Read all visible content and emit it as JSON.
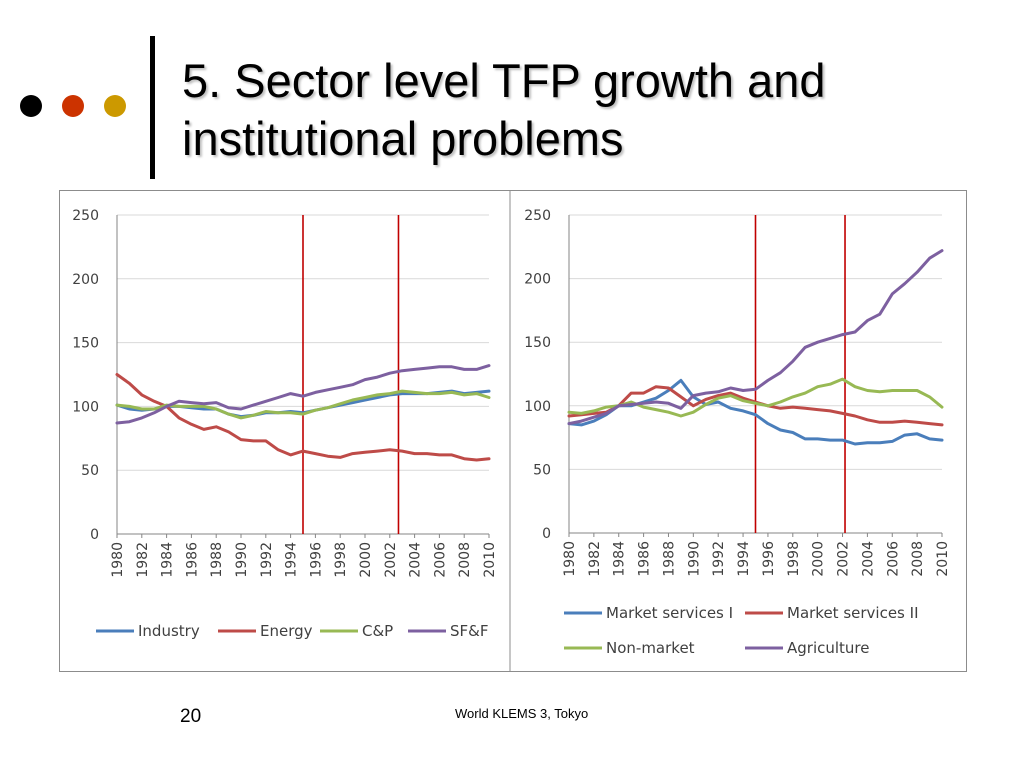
{
  "slide": {
    "title": "5. Sector level TFP growth and institutional problems",
    "page_number": "20",
    "footer": "World KLEMS 3, Tokyo",
    "bullet_colors": [
      "#000000",
      "#cc3300",
      "#cc9900"
    ]
  },
  "chart_data": [
    {
      "type": "line",
      "title": "",
      "xlabel": "",
      "ylabel": "",
      "ylim": [
        0,
        250
      ],
      "yticks": [
        0,
        50,
        100,
        150,
        200,
        250
      ],
      "xticks": [
        "1980",
        "1982",
        "1984",
        "1986",
        "1988",
        "1990",
        "1992",
        "1994",
        "1996",
        "1998",
        "2000",
        "2002",
        "2004",
        "2006",
        "2008",
        "2010"
      ],
      "x": [
        1980,
        1981,
        1982,
        1983,
        1984,
        1985,
        1986,
        1987,
        1988,
        1989,
        1990,
        1991,
        1992,
        1993,
        1994,
        1995,
        1996,
        1997,
        1998,
        1999,
        2000,
        2001,
        2002,
        2003,
        2004,
        2005,
        2006,
        2007,
        2008,
        2009,
        2010
      ],
      "vlines": [
        1995,
        2002.7
      ],
      "vline_color": "#c00000",
      "legend_position": "bottom",
      "series": [
        {
          "name": "Industry",
          "color": "#4a7ebb",
          "values": [
            101,
            98,
            97,
            98,
            100,
            100,
            99,
            98,
            98,
            94,
            92,
            93,
            95,
            95,
            96,
            95,
            97,
            99,
            101,
            103,
            105,
            107,
            109,
            110,
            110,
            110,
            111,
            112,
            110,
            111,
            112
          ]
        },
        {
          "name": "Energy",
          "color": "#be4b48",
          "values": [
            125,
            118,
            109,
            104,
            100,
            91,
            86,
            82,
            84,
            80,
            74,
            73,
            73,
            66,
            62,
            65,
            63,
            61,
            60,
            63,
            64,
            65,
            66,
            65,
            63,
            63,
            62,
            62,
            59,
            58,
            59
          ]
        },
        {
          "name": "C&P",
          "color": "#98b954",
          "values": [
            101,
            100,
            98,
            98,
            101,
            100,
            100,
            100,
            98,
            94,
            91,
            93,
            96,
            95,
            95,
            94,
            97,
            99,
            102,
            105,
            107,
            109,
            110,
            112,
            111,
            110,
            110,
            111,
            109,
            110,
            107
          ]
        },
        {
          "name": "SF&F",
          "color": "#7d60a0",
          "values": [
            87,
            88,
            91,
            95,
            100,
            104,
            103,
            102,
            103,
            99,
            98,
            101,
            104,
            107,
            110,
            108,
            111,
            113,
            115,
            117,
            121,
            123,
            126,
            128,
            129,
            130,
            131,
            131,
            129,
            129,
            132
          ]
        }
      ]
    },
    {
      "type": "line",
      "title": "",
      "xlabel": "",
      "ylabel": "",
      "ylim": [
        0,
        250
      ],
      "yticks": [
        0,
        50,
        100,
        150,
        200,
        250
      ],
      "xticks": [
        "1980",
        "1982",
        "1984",
        "1986",
        "1988",
        "1990",
        "1992",
        "1994",
        "1996",
        "1998",
        "2000",
        "2002",
        "2004",
        "2006",
        "2008",
        "2010"
      ],
      "x": [
        1980,
        1981,
        1982,
        1983,
        1984,
        1985,
        1986,
        1987,
        1988,
        1989,
        1990,
        1991,
        1992,
        1993,
        1994,
        1995,
        1996,
        1997,
        1998,
        1999,
        2000,
        2001,
        2002,
        2003,
        2004,
        2005,
        2006,
        2007,
        2008,
        2009,
        2010
      ],
      "vlines": [
        1995,
        2002.2
      ],
      "vline_color": "#c00000",
      "legend_position": "bottom",
      "series": [
        {
          "name": "Market services I",
          "color": "#4a7ebb",
          "values": [
            86,
            85,
            88,
            93,
            100,
            100,
            103,
            106,
            112,
            120,
            107,
            101,
            103,
            98,
            96,
            93,
            86,
            81,
            79,
            74,
            74,
            73,
            73,
            70,
            71,
            71,
            72,
            77,
            78,
            74,
            73
          ]
        },
        {
          "name": "Market services II",
          "color": "#be4b48",
          "values": [
            92,
            93,
            94,
            95,
            100,
            110,
            110,
            115,
            114,
            107,
            100,
            105,
            108,
            110,
            106,
            103,
            100,
            98,
            99,
            98,
            97,
            96,
            94,
            92,
            89,
            87,
            87,
            88,
            87,
            86,
            85
          ]
        },
        {
          "name": "Non-market",
          "color": "#98b954",
          "values": [
            95,
            94,
            96,
            99,
            100,
            103,
            99,
            97,
            95,
            92,
            95,
            101,
            106,
            108,
            104,
            102,
            100,
            103,
            107,
            110,
            115,
            117,
            121,
            115,
            112,
            111,
            112,
            112,
            112,
            107,
            99
          ]
        },
        {
          "name": "Agriculture",
          "color": "#7d60a0",
          "values": [
            86,
            88,
            91,
            94,
            100,
            101,
            102,
            103,
            102,
            98,
            108,
            110,
            111,
            114,
            112,
            113,
            120,
            126,
            135,
            146,
            150,
            153,
            156,
            158,
            167,
            172,
            188,
            196,
            205,
            216,
            222
          ]
        }
      ]
    }
  ]
}
